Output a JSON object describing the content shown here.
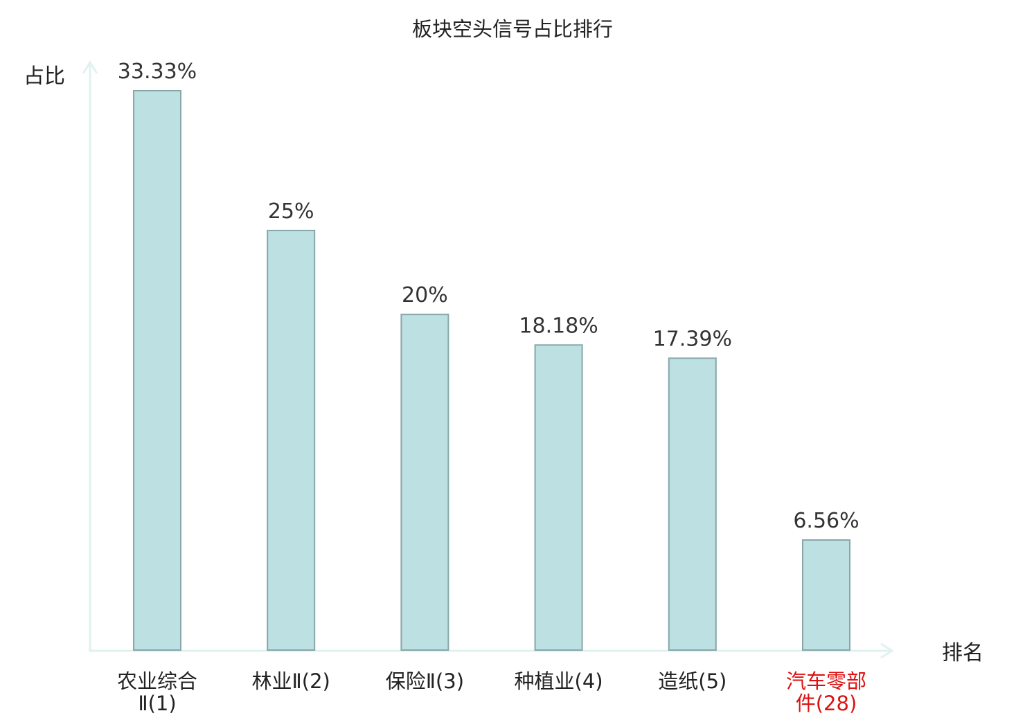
{
  "chart_data": {
    "type": "bar",
    "title": "板块空头信号占比排行",
    "xlabel": "排名",
    "ylabel": "占比",
    "categories": [
      [
        "农业综合",
        "Ⅱ(1)"
      ],
      [
        "林业Ⅱ(2)"
      ],
      [
        "保险Ⅱ(3)"
      ],
      [
        "种植业(4)"
      ],
      [
        "造纸(5)"
      ],
      [
        "汽车零部",
        "件(28)"
      ]
    ],
    "values": [
      33.33,
      25,
      20,
      18.18,
      17.39,
      6.56
    ],
    "value_labels": [
      "33.33%",
      "25%",
      "20%",
      "18.18%",
      "17.39%",
      "6.56%"
    ],
    "highlight": [
      false,
      false,
      false,
      false,
      false,
      true
    ],
    "ylim": [
      0,
      33.33
    ],
    "grid": false,
    "colors": {
      "bar_fill": "#bde0e2",
      "bar_stroke": "#87a7a9",
      "axis": "#e0f2f0",
      "highlight_text": "#dd1111",
      "text": "#222222"
    }
  }
}
